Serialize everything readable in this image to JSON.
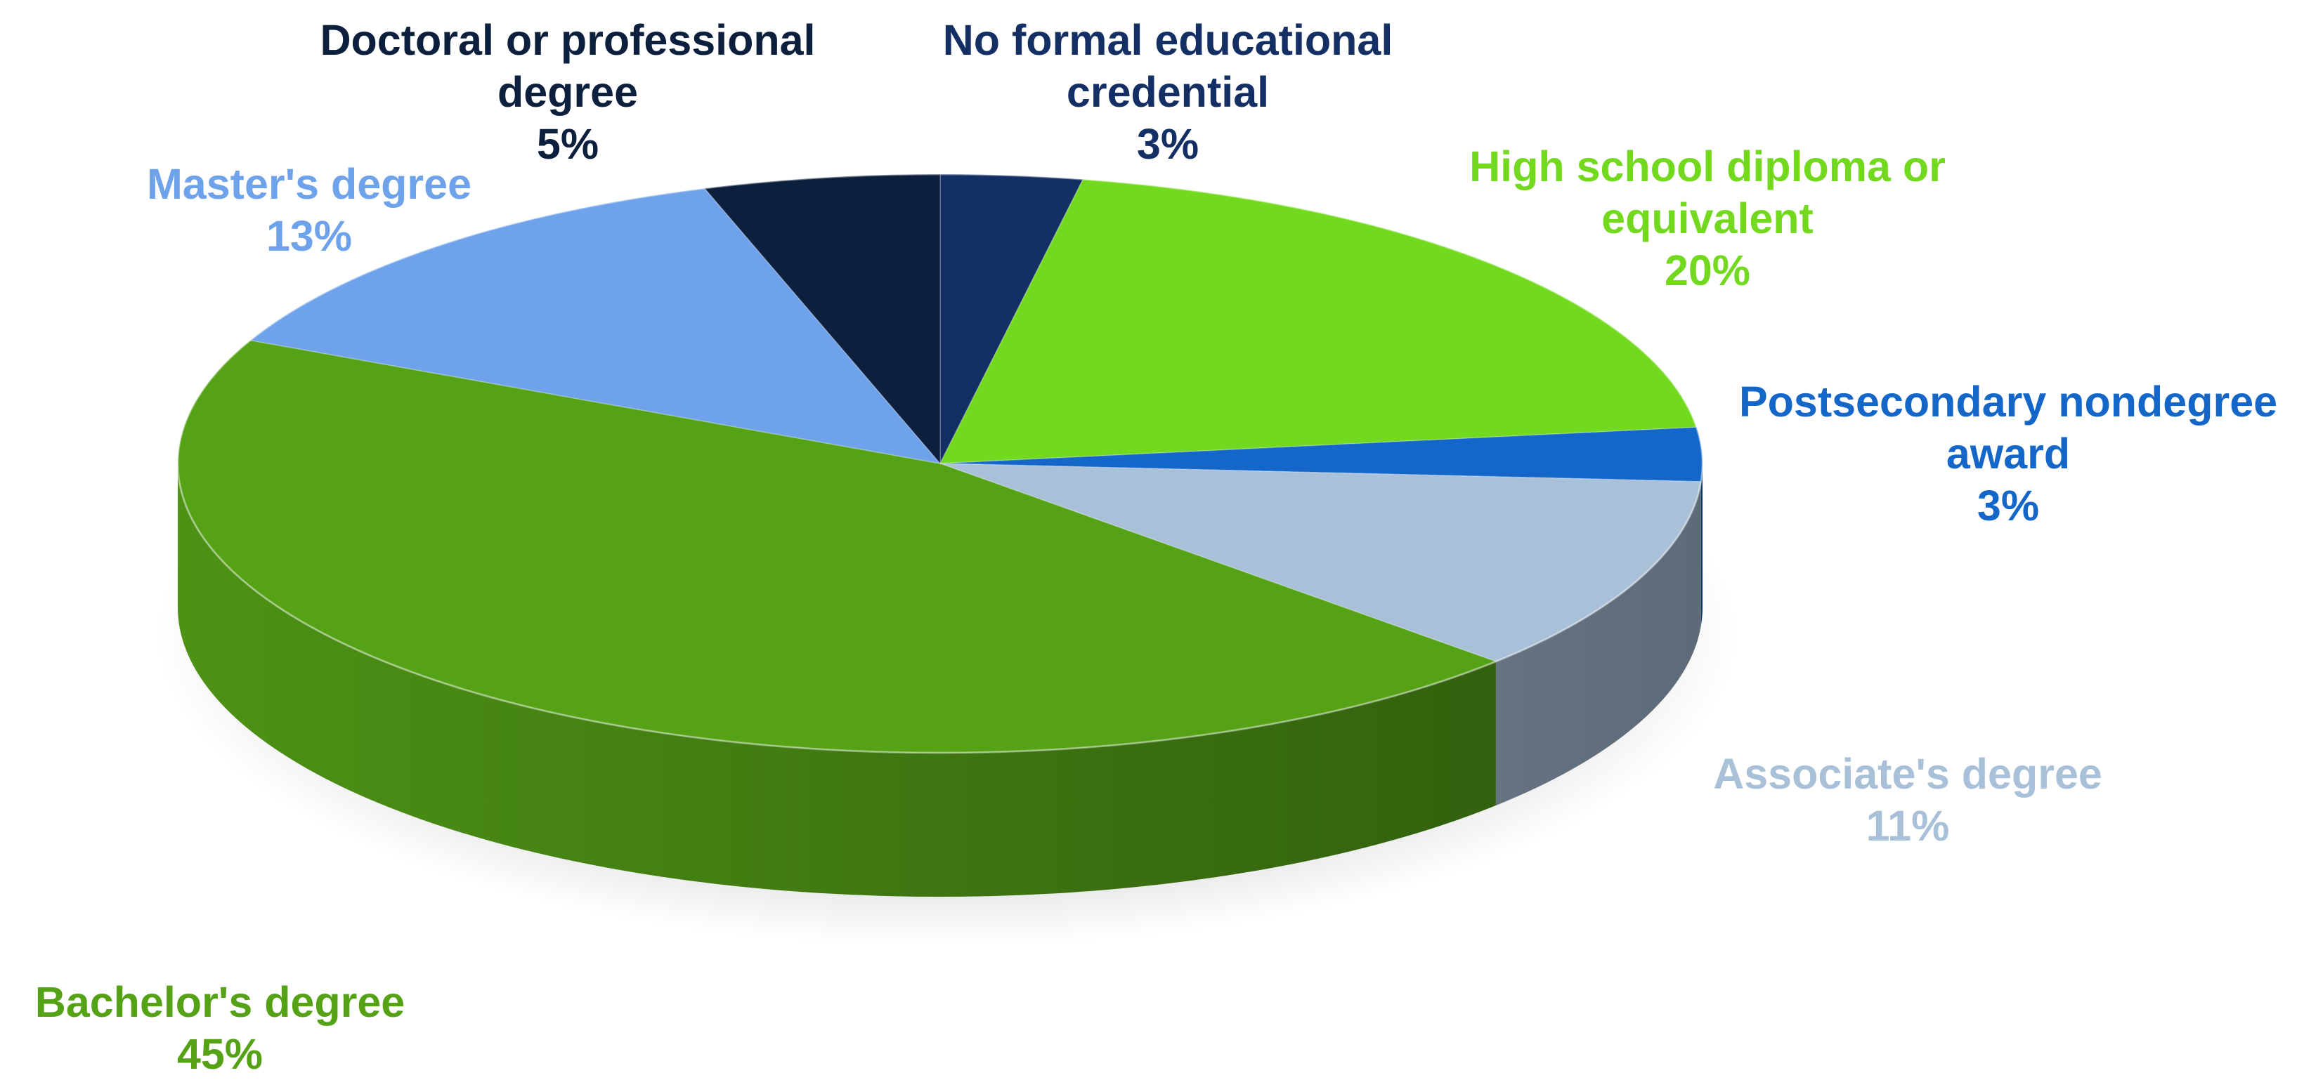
{
  "chart_data": {
    "type": "pie",
    "style": "3d",
    "start_angle_deg": 0,
    "direction": "clockwise",
    "series": [
      {
        "values": [
          3,
          20,
          3,
          11,
          45,
          13,
          5
        ],
        "unit": "%"
      }
    ],
    "slices": [
      {
        "label": "No formal educational credential",
        "label_lines": [
          "No formal educational",
          "credential"
        ],
        "value": 3,
        "value_label": "3%",
        "color": "#142f64"
      },
      {
        "label": "High school diploma or equivalent",
        "label_lines": [
          "High school diploma or",
          "equivalent"
        ],
        "value": 20,
        "value_label": "20%",
        "color": "#72d91e"
      },
      {
        "label": "Postsecondary nondegree award",
        "label_lines": [
          "Postsecondary nondegree",
          "award"
        ],
        "value": 3,
        "value_label": "3%",
        "color": "#1467c8"
      },
      {
        "label": "Associate's degree",
        "label_lines": [
          "Associate's degree"
        ],
        "value": 11,
        "value_label": "11%",
        "color": "#a9c0d9"
      },
      {
        "label": "Bachelor's degree",
        "label_lines": [
          "Bachelor's degree"
        ],
        "value": 45,
        "value_label": "45%",
        "color": "#55a217"
      },
      {
        "label": "Master's degree",
        "label_lines": [
          "Master's degree"
        ],
        "value": 13,
        "value_label": "13%",
        "color": "#6ea2ea"
      },
      {
        "label": "Doctoral or professional degree",
        "label_lines": [
          "Doctoral or professional",
          "degree"
        ],
        "value": 5,
        "value_label": "5%",
        "color": "#0c1f3d"
      }
    ],
    "label_colors": [
      "#142f64",
      "#72d91e",
      "#1467c8",
      "#a9c0d9",
      "#55a217",
      "#6ea2ea",
      "#0c1f3d"
    ],
    "legend": "none",
    "title": ""
  }
}
